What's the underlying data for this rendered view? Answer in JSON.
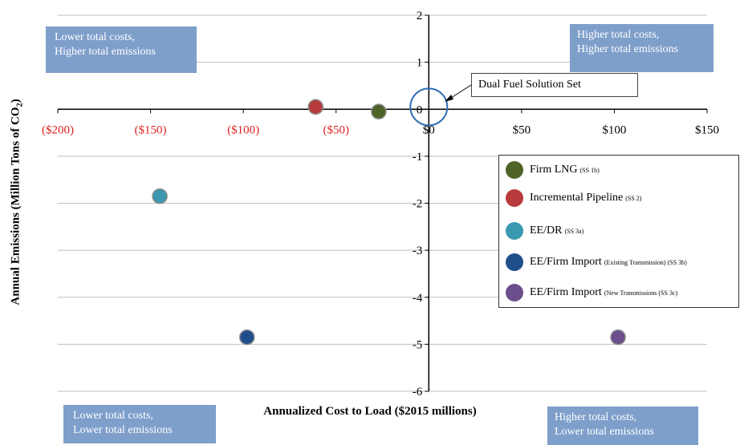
{
  "chart_data": {
    "type": "scatter",
    "xlabel": "Annualized Cost to Load ($2015 millions)",
    "ylabel": "Annual Emissions (Million Tons of CO",
    "ylabel_sub": "2",
    "ylabel_tail": ")",
    "xlim": [
      -200,
      150
    ],
    "ylim": [
      -6,
      2
    ],
    "x_ticks": [
      -200,
      -150,
      -100,
      -50,
      0,
      50,
      100,
      150
    ],
    "x_tick_labels": [
      "($200)",
      "($150)",
      "($100)",
      "($50)",
      "$0",
      "$50",
      "$100",
      "$150"
    ],
    "y_ticks": [
      2,
      1,
      0,
      -1,
      -2,
      -3,
      -4,
      -5,
      -6
    ],
    "y_tick_labels": [
      "2",
      "1",
      "0",
      "-1",
      "-2",
      "-3",
      "-4",
      "-5",
      "-6"
    ],
    "grid": true,
    "legend_position": "right",
    "series": [
      {
        "name": "Firm LNG",
        "suffix": "(SS 1b)",
        "color": "#4f6228",
        "points": [
          {
            "x": -27,
            "y": -0.05
          }
        ]
      },
      {
        "name": "Incremental Pipeline",
        "suffix": "(SS 2)",
        "color": "#b83a3a",
        "points": [
          {
            "x": -61,
            "y": 0.05
          }
        ]
      },
      {
        "name": "EE/DR",
        "suffix": "(SS 3a)",
        "color": "#3a99b0",
        "points": [
          {
            "x": -145,
            "y": -1.85
          }
        ]
      },
      {
        "name": "EE/Firm Import",
        "suffix": "(Existing Transmission) (SS 3b)",
        "color": "#1f4e8c",
        "points": [
          {
            "x": -98,
            "y": -4.85
          }
        ]
      },
      {
        "name": "EE/Firm Import",
        "suffix": "(New Transmissions (SS 3c)",
        "color": "#6b4e8c",
        "points": [
          {
            "x": 102,
            "y": -4.85
          }
        ]
      }
    ],
    "annotations": {
      "callout": "Dual Fuel Solution Set",
      "solution_center": {
        "x": 0,
        "y": 0.05
      }
    },
    "quadrants": {
      "top_left": [
        "Lower total costs,",
        "Higher total emissions"
      ],
      "top_right": [
        "Higher total costs,",
        "Higher total emissions"
      ],
      "bottom_left": [
        "Lower total costs,",
        "Lower total emissions"
      ],
      "bottom_right": [
        "Higher total costs,",
        "Lower total emissions"
      ]
    },
    "colors": {
      "negative_tick": "#e02020",
      "positive_tick": "#000000",
      "grid": "#bfbfbf",
      "quadrant_box": "#7f9fcb"
    }
  }
}
